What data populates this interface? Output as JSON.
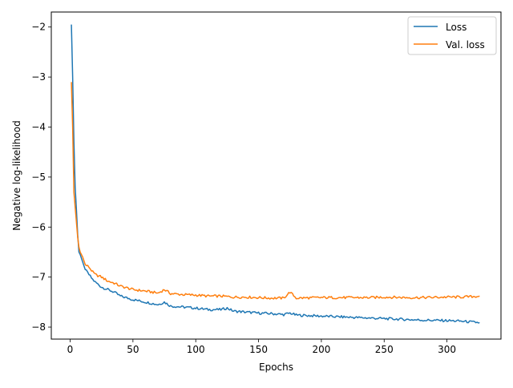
{
  "chart_data": {
    "type": "line",
    "title": "",
    "xlabel": "Epochs",
    "ylabel": "Negative log-likelihood",
    "xlim": [
      -15,
      343
    ],
    "ylim": [
      -8.24,
      -1.7
    ],
    "xticks": [
      0,
      50,
      100,
      150,
      200,
      250,
      300
    ],
    "xtick_labels": [
      "0",
      "50",
      "100",
      "150",
      "200",
      "250",
      "300"
    ],
    "yticks": [
      -8,
      -7,
      -6,
      -5,
      -4,
      -3,
      -2
    ],
    "ytick_labels": [
      "−8",
      "−7",
      "−6",
      "−5",
      "−4",
      "−3",
      "−2"
    ],
    "grid": false,
    "legend_position": "top-right",
    "series": [
      {
        "name": "Loss",
        "color": "#1f77b4",
        "x": [
          1,
          2,
          3,
          4,
          5,
          6,
          7,
          8,
          10,
          12,
          15,
          18,
          20,
          25,
          30,
          35,
          40,
          50,
          60,
          70,
          75,
          80,
          90,
          100,
          110,
          120,
          125,
          130,
          140,
          150,
          160,
          170,
          175,
          180,
          200,
          220,
          240,
          250,
          270,
          280,
          300,
          310,
          320,
          326
        ],
        "values": [
          -1.95,
          -3.0,
          -4.3,
          -5.2,
          -5.65,
          -6.15,
          -6.5,
          -6.55,
          -6.7,
          -6.85,
          -6.95,
          -7.05,
          -7.1,
          -7.2,
          -7.25,
          -7.3,
          -7.38,
          -7.45,
          -7.5,
          -7.55,
          -7.5,
          -7.58,
          -7.6,
          -7.62,
          -7.65,
          -7.65,
          -7.62,
          -7.68,
          -7.7,
          -7.72,
          -7.73,
          -7.75,
          -7.72,
          -7.76,
          -7.78,
          -7.8,
          -7.82,
          -7.83,
          -7.85,
          -7.86,
          -7.87,
          -7.88,
          -7.9,
          -7.91
        ]
      },
      {
        "name": "Val. loss",
        "color": "#ff7f0e",
        "x": [
          1,
          2,
          3,
          4,
          5,
          6,
          7,
          8,
          10,
          12,
          15,
          18,
          20,
          25,
          30,
          35,
          40,
          50,
          60,
          70,
          75,
          80,
          90,
          100,
          110,
          120,
          130,
          140,
          150,
          160,
          170,
          175,
          180,
          200,
          220,
          240,
          250,
          270,
          280,
          300,
          310,
          320,
          326
        ],
        "values": [
          -3.1,
          -4.0,
          -5.3,
          -5.6,
          -5.9,
          -6.2,
          -6.4,
          -6.5,
          -6.6,
          -6.75,
          -6.8,
          -6.9,
          -6.95,
          -7.0,
          -7.08,
          -7.12,
          -7.18,
          -7.25,
          -7.28,
          -7.32,
          -7.25,
          -7.33,
          -7.35,
          -7.36,
          -7.38,
          -7.38,
          -7.4,
          -7.4,
          -7.41,
          -7.42,
          -7.42,
          -7.3,
          -7.42,
          -7.41,
          -7.41,
          -7.41,
          -7.4,
          -7.41,
          -7.41,
          -7.4,
          -7.4,
          -7.39,
          -7.38
        ]
      }
    ]
  }
}
